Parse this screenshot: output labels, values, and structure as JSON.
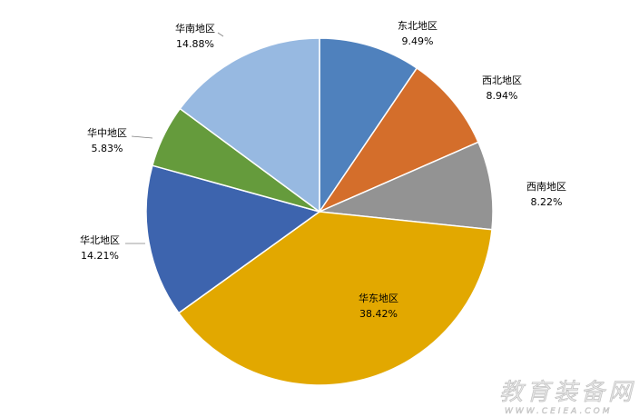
{
  "chart_data": {
    "type": "pie",
    "title": "",
    "start_angle": "top",
    "direction": "clockwise",
    "slices": [
      {
        "label": "东北地区",
        "value": 9.49,
        "display": "9.49%",
        "color": "#4F81BD"
      },
      {
        "label": "西北地区",
        "value": 8.94,
        "display": "8.94%",
        "color": "#D46E2B"
      },
      {
        "label": "西南地区",
        "value": 8.22,
        "display": "8.22%",
        "color": "#939393"
      },
      {
        "label": "华东地区",
        "value": 38.42,
        "display": "38.42%",
        "color": "#E2A800"
      },
      {
        "label": "华北地区",
        "value": 14.21,
        "display": "14.21%",
        "color": "#3D64AE"
      },
      {
        "label": "华中地区",
        "value": 5.83,
        "display": "5.83%",
        "color": "#659B3C"
      },
      {
        "label": "华南地区",
        "value": 14.88,
        "display": "14.88%",
        "color": "#97B9E1"
      }
    ],
    "legend": "none"
  },
  "watermark": {
    "name": "教育装备网",
    "url": "WWW.CEIEA.COM"
  }
}
